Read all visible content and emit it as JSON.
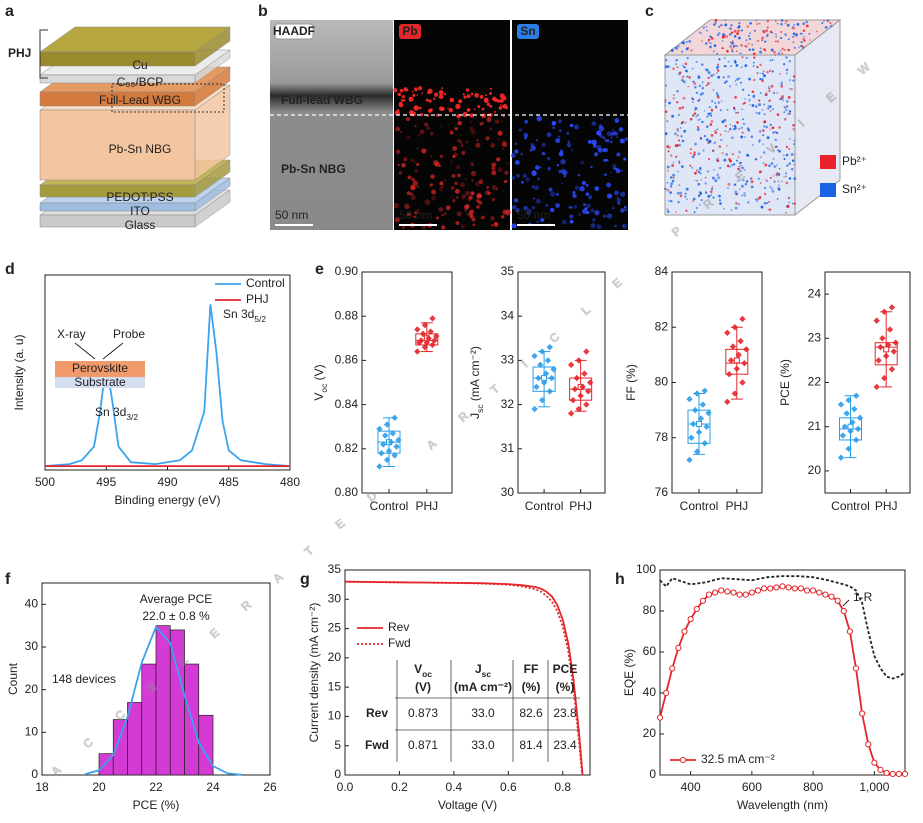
{
  "panel_labels": [
    "a",
    "b",
    "c",
    "d",
    "e",
    "f",
    "g",
    "h"
  ],
  "watermark": "ACCELERATED ARTICLE PREVIEW",
  "schematic": {
    "bracket_label": "PHJ",
    "layers": [
      "Cu",
      "C₆₀/BCP",
      "Full-Lead WBG",
      "Pb-Sn NBG",
      "PEDOT:PSS",
      "ITO",
      "Glass"
    ]
  },
  "microscopy": {
    "channels": [
      "HAADF",
      "Pb",
      "Sn"
    ],
    "regions": [
      "Full-lead WBG",
      "Pb-Sn NBG"
    ],
    "scale_bar": "50 nm"
  },
  "render3d": {
    "legend": [
      {
        "name": "Pb²⁺",
        "color": "#e8212a"
      },
      {
        "name": "Sn²⁺",
        "color": "#1a63e6"
      }
    ]
  },
  "chart_data": [
    {
      "type": "line",
      "xlabel": "Binding energy (eV)",
      "ylabel": "Intensity (a. u)",
      "xlim": [
        500,
        480
      ],
      "xticks": [
        500,
        495,
        490,
        485,
        480
      ],
      "ylim": [
        0,
        1
      ],
      "legend": "upper right",
      "series": [
        {
          "name": "Control",
          "color": "#3ba3ec",
          "x": [
            500,
            498,
            497,
            496,
            495.5,
            495,
            494.5,
            494,
            493,
            491,
            489,
            488,
            487,
            486.5,
            486,
            485.5,
            485,
            484,
            482,
            480
          ],
          "values": [
            0.02,
            0.03,
            0.05,
            0.12,
            0.3,
            0.55,
            0.35,
            0.12,
            0.04,
            0.03,
            0.05,
            0.1,
            0.3,
            0.85,
            0.6,
            0.25,
            0.1,
            0.05,
            0.03,
            0.02
          ]
        },
        {
          "name": "PHJ",
          "color": "#e3262b",
          "x": [
            500,
            495,
            490,
            485,
            480
          ],
          "values": [
            0.02,
            0.02,
            0.02,
            0.02,
            0.02
          ]
        }
      ],
      "annotations": [
        {
          "text": "Sn 3d",
          "sub": "3/2"
        },
        {
          "text": "Sn 3d",
          "sub": "5/2"
        }
      ],
      "inset": [
        "X-ray",
        "Probe",
        "Perovskite",
        "Substrate"
      ]
    },
    {
      "type": "box",
      "ylabel": {
        "text": "V",
        "sub": "oc",
        "after": " (V)"
      },
      "categories": [
        "Control",
        "PHJ"
      ],
      "ylim": [
        0.8,
        0.9
      ],
      "yticks": [
        {
          "value": 0.8,
          "label": "0.80"
        },
        0.82,
        0.84,
        0.86,
        0.88,
        {
          "value": 0.9,
          "label": "0.90"
        }
      ],
      "boxes": [
        {
          "color": "#2b9de8",
          "whisker_low": 0.812,
          "q1": 0.818,
          "median": 0.823,
          "mean": 0.823,
          "q3": 0.828,
          "whisker_high": 0.834,
          "points": [
            0.812,
            0.815,
            0.817,
            0.818,
            0.819,
            0.821,
            0.822,
            0.823,
            0.824,
            0.826,
            0.827,
            0.829,
            0.831,
            0.834
          ]
        },
        {
          "color": "#e3262b",
          "whisker_low": 0.864,
          "q1": 0.867,
          "median": 0.869,
          "mean": 0.87,
          "q3": 0.872,
          "whisker_high": 0.877,
          "points": [
            0.864,
            0.866,
            0.867,
            0.868,
            0.868,
            0.869,
            0.869,
            0.87,
            0.871,
            0.872,
            0.873,
            0.874,
            0.876,
            0.879
          ]
        }
      ]
    },
    {
      "type": "box",
      "ylabel": {
        "text": "J",
        "sub": "sc",
        "after": " (mA cm⁻²)"
      },
      "categories": [
        "Control",
        "PHJ"
      ],
      "ylim": [
        30,
        35
      ],
      "yticks": [
        30,
        31,
        32,
        33,
        34,
        35
      ],
      "boxes": [
        {
          "color": "#2b9de8",
          "whisker_low": 31.95,
          "q1": 32.3,
          "median": 32.6,
          "mean": 32.6,
          "q3": 32.85,
          "whisker_high": 33.2,
          "points": [
            31.9,
            32.1,
            32.3,
            32.4,
            32.5,
            32.6,
            32.6,
            32.7,
            32.8,
            32.9,
            33.0,
            33.1,
            33.2,
            33.3
          ]
        },
        {
          "color": "#e3262b",
          "whisker_low": 31.85,
          "q1": 32.1,
          "median": 32.35,
          "mean": 32.4,
          "q3": 32.6,
          "whisker_high": 33.0,
          "points": [
            31.8,
            31.9,
            32.0,
            32.1,
            32.2,
            32.3,
            32.35,
            32.4,
            32.5,
            32.6,
            32.7,
            32.9,
            33.0,
            33.2
          ]
        }
      ]
    },
    {
      "type": "box",
      "ylabel": "FF (%)",
      "categories": [
        "Control",
        "PHJ"
      ],
      "ylim": [
        76,
        84
      ],
      "yticks": [
        76,
        78,
        80,
        82,
        84
      ],
      "boxes": [
        {
          "color": "#2b9de8",
          "whisker_low": 77.4,
          "q1": 77.8,
          "median": 78.5,
          "mean": 78.5,
          "q3": 79.0,
          "whisker_high": 79.6,
          "points": [
            77.2,
            77.5,
            77.8,
            78.0,
            78.2,
            78.4,
            78.5,
            78.7,
            78.9,
            79.0,
            79.2,
            79.4,
            79.6,
            79.7
          ]
        },
        {
          "color": "#e3262b",
          "whisker_low": 79.4,
          "q1": 80.3,
          "median": 80.7,
          "mean": 80.8,
          "q3": 81.2,
          "whisker_high": 82.0,
          "points": [
            79.3,
            79.6,
            80.0,
            80.3,
            80.5,
            80.7,
            80.8,
            81.0,
            81.2,
            81.3,
            81.5,
            81.8,
            82.0,
            82.3
          ]
        }
      ]
    },
    {
      "type": "box",
      "ylabel": "PCE (%)",
      "categories": [
        "Control",
        "PHJ"
      ],
      "ylim": [
        19.5,
        24.5
      ],
      "yticks": [
        20,
        21,
        22,
        23,
        24
      ],
      "boxes": [
        {
          "color": "#2b9de8",
          "whisker_low": 20.3,
          "q1": 20.7,
          "median": 20.95,
          "mean": 21.0,
          "q3": 21.2,
          "whisker_high": 21.7,
          "points": [
            20.3,
            20.5,
            20.7,
            20.8,
            20.9,
            20.95,
            21.0,
            21.1,
            21.2,
            21.3,
            21.4,
            21.5,
            21.6,
            21.7
          ]
        },
        {
          "color": "#e3262b",
          "whisker_low": 21.9,
          "q1": 22.4,
          "median": 22.8,
          "mean": 22.75,
          "q3": 22.9,
          "whisker_high": 23.6,
          "points": [
            21.9,
            22.1,
            22.3,
            22.5,
            22.6,
            22.7,
            22.8,
            22.85,
            22.9,
            23.0,
            23.2,
            23.4,
            23.6,
            23.7
          ]
        }
      ]
    },
    {
      "type": "histogram",
      "xlabel": "PCE (%)",
      "ylabel": "Count",
      "bins": [
        20,
        20.5,
        21,
        21.5,
        22,
        22.5,
        23,
        23.5,
        24
      ],
      "values": [
        5,
        13,
        17,
        26,
        35,
        34,
        26,
        14
      ],
      "color": "#d43ad4",
      "fit": {
        "color": "#3ba3ec",
        "x": [
          19.5,
          20,
          20.5,
          21,
          21.5,
          22,
          22.5,
          23,
          23.5,
          24,
          24.5,
          25
        ],
        "values": [
          0.18,
          1.1,
          4.7,
          13.6,
          26.4,
          34.7,
          30.9,
          18.6,
          7.6,
          2.1,
          0.4,
          0.05
        ]
      },
      "xlim": [
        18,
        26
      ],
      "xticks": [
        18,
        20,
        22,
        24,
        26
      ],
      "ylim": [
        0,
        45
      ],
      "yticks": [
        0,
        10,
        20,
        30,
        40
      ],
      "annotations": [
        "Average PCE",
        "22.0 ± 0.8 %",
        "148 devices"
      ]
    },
    {
      "type": "line",
      "xlabel": "Voltage (V)",
      "ylabel": "Current density (mA cm⁻²)",
      "xlim": [
        0,
        0.9
      ],
      "xticks": [
        {
          "value": 0,
          "label": "0.0"
        },
        0.2,
        0.4,
        0.6,
        0.8
      ],
      "ylim": [
        0,
        35
      ],
      "yticks": [
        0,
        5,
        10,
        15,
        20,
        25,
        30,
        35
      ],
      "legend": "upper left",
      "series": [
        {
          "name": "Rev",
          "color": "#e3262b",
          "x": [
            0,
            0.1,
            0.2,
            0.3,
            0.4,
            0.5,
            0.6,
            0.65,
            0.7,
            0.72,
            0.74,
            0.76,
            0.78,
            0.8,
            0.82,
            0.84,
            0.86,
            0.873
          ],
          "values": [
            33.0,
            32.95,
            32.9,
            32.85,
            32.8,
            32.75,
            32.6,
            32.4,
            32.1,
            31.8,
            31.3,
            30.5,
            29.0,
            26.5,
            22.5,
            16,
            7,
            0
          ]
        },
        {
          "name": "Fwd",
          "color": "#e3262b",
          "dash": "2,2",
          "x": [
            0,
            0.1,
            0.2,
            0.3,
            0.4,
            0.5,
            0.6,
            0.65,
            0.7,
            0.72,
            0.74,
            0.76,
            0.78,
            0.8,
            0.82,
            0.84,
            0.86,
            0.871
          ],
          "values": [
            33.0,
            32.95,
            32.9,
            32.85,
            32.8,
            32.7,
            32.5,
            32.2,
            31.7,
            31.3,
            30.6,
            29.6,
            28.0,
            25.3,
            21.2,
            14.5,
            5.5,
            0
          ]
        }
      ],
      "table": {
        "header": [
          {
            "text": "V",
            "sub": "oc",
            "unit": "(V)"
          },
          {
            "text": "J",
            "sub": "sc",
            "unit": "(mA cm⁻²)"
          },
          {
            "text": "FF",
            "unit": "(%)"
          },
          {
            "text": "PCE",
            "unit": "(%)"
          }
        ],
        "rows": [
          [
            "Rev",
            "0.873",
            "33.0",
            "82.6",
            "23.8"
          ],
          [
            "Fwd",
            "0.871",
            "33.0",
            "81.4",
            "23.4"
          ]
        ]
      }
    },
    {
      "type": "line",
      "xlabel": "Wavelength (nm)",
      "ylabel": "EQE (%)",
      "xlim": [
        300,
        1100
      ],
      "xticks": [
        400,
        600,
        800,
        {
          "value": 1000,
          "label": "1,000"
        }
      ],
      "ylim": [
        0,
        100
      ],
      "yticks": [
        0,
        20,
        40,
        60,
        80,
        100
      ],
      "legend": "lower left",
      "series": [
        {
          "name": "32.5 mA cm⁻²",
          "color": "#e3262b",
          "marker": "circle",
          "x": [
            300,
            320,
            340,
            360,
            380,
            400,
            420,
            440,
            460,
            480,
            500,
            520,
            540,
            560,
            580,
            600,
            620,
            640,
            660,
            680,
            700,
            720,
            740,
            760,
            780,
            800,
            820,
            840,
            860,
            880,
            900,
            920,
            940,
            960,
            980,
            1000,
            1020,
            1040,
            1060,
            1080,
            1100
          ],
          "values": [
            28,
            40,
            52,
            62,
            70,
            76,
            81,
            85,
            88,
            89,
            90,
            89.5,
            89,
            88,
            88,
            89,
            90,
            91,
            91,
            91.5,
            92,
            91.5,
            91,
            91,
            90,
            90,
            89,
            88,
            87,
            85,
            80,
            70,
            52,
            30,
            15,
            6,
            2.5,
            1,
            0.5,
            0.5,
            0.5
          ]
        }
      ],
      "reference": {
        "name": "1-R",
        "color": "#222222",
        "dash": "3,2",
        "x": [
          300,
          320,
          340,
          360,
          380,
          400,
          450,
          500,
          550,
          600,
          650,
          700,
          750,
          800,
          850,
          900,
          920,
          940,
          960,
          980,
          1000,
          1020,
          1040,
          1060,
          1080,
          1100
        ],
        "values": [
          95,
          92,
          96,
          95,
          94,
          93,
          94,
          96,
          95.5,
          95,
          96.5,
          97,
          97,
          96.5,
          95,
          93,
          92,
          90,
          84,
          70,
          58,
          52,
          48,
          47,
          48,
          50
        ]
      }
    }
  ]
}
